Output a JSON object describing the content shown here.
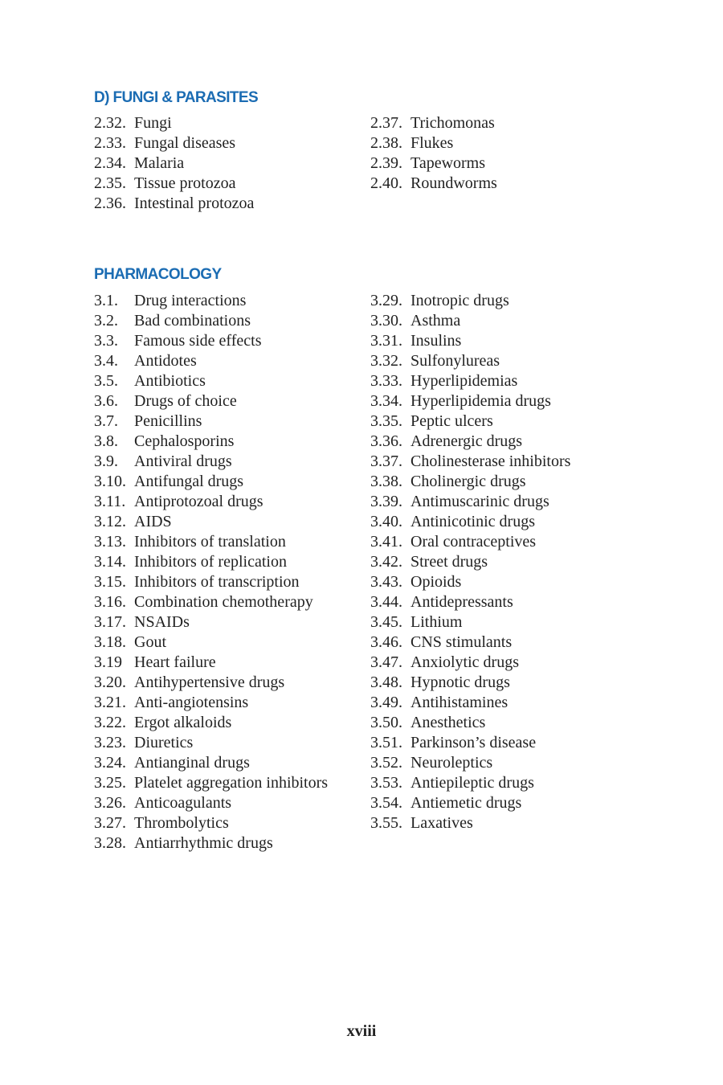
{
  "sections": [
    {
      "title": "D) FUNGI & PARASITES",
      "left": [
        [
          "2.32.",
          "Fungi"
        ],
        [
          "2.33.",
          "Fungal diseases"
        ],
        [
          "2.34.",
          "Malaria"
        ],
        [
          "2.35.",
          "Tissue protozoa"
        ],
        [
          "2.36.",
          "Intestinal protozoa"
        ]
      ],
      "right": [
        [
          "2.37.",
          "Trichomonas"
        ],
        [
          "2.38.",
          "Flukes"
        ],
        [
          "2.39.",
          "Tapeworms"
        ],
        [
          "2.40.",
          "Roundworms"
        ]
      ]
    },
    {
      "title": "PHARMACOLOGY",
      "left": [
        [
          "3.1.",
          "Drug interactions"
        ],
        [
          "3.2.",
          "Bad combinations"
        ],
        [
          "3.3.",
          "Famous side effects"
        ],
        [
          "3.4.",
          "Antidotes"
        ],
        [
          "3.5.",
          "Antibiotics"
        ],
        [
          "3.6.",
          "Drugs of choice"
        ],
        [
          "3.7.",
          "Penicillins"
        ],
        [
          "3.8.",
          "Cephalosporins"
        ],
        [
          "3.9.",
          "Antiviral drugs"
        ],
        [
          "3.10.",
          "Antifungal drugs"
        ],
        [
          "3.11.",
          "Antiprotozoal drugs"
        ],
        [
          "3.12.",
          "AIDS"
        ],
        [
          "3.13.",
          "Inhibitors of translation"
        ],
        [
          "3.14.",
          "Inhibitors of replication"
        ],
        [
          "3.15.",
          "Inhibitors of transcription"
        ],
        [
          "3.16.",
          "Combination chemotherapy"
        ],
        [
          "3.17.",
          "NSAIDs"
        ],
        [
          "3.18.",
          "Gout"
        ],
        [
          "3.19",
          "Heart failure"
        ],
        [
          "3.20.",
          "Antihypertensive drugs"
        ],
        [
          "3.21.",
          "Anti-angiotensins"
        ],
        [
          "3.22.",
          "Ergot alkaloids"
        ],
        [
          "3.23.",
          "Diuretics"
        ],
        [
          "3.24.",
          "Antianginal drugs"
        ],
        [
          "3.25.",
          "Platelet aggregation inhibitors"
        ],
        [
          "3.26.",
          "Anticoagulants"
        ],
        [
          "3.27.",
          "Thrombolytics"
        ],
        [
          "3.28.",
          "Antiarrhythmic drugs"
        ]
      ],
      "right": [
        [
          "3.29.",
          "Inotropic drugs"
        ],
        [
          "3.30.",
          "Asthma"
        ],
        [
          "3.31.",
          "Insulins"
        ],
        [
          "3.32.",
          "Sulfonylureas"
        ],
        [
          "3.33.",
          "Hyperlipidemias"
        ],
        [
          "3.34.",
          "Hyperlipidemia drugs"
        ],
        [
          "3.35.",
          "Peptic ulcers"
        ],
        [
          "3.36.",
          "Adrenergic drugs"
        ],
        [
          "3.37.",
          "Cholinesterase inhibitors"
        ],
        [
          "3.38.",
          "Cholinergic drugs"
        ],
        [
          "3.39.",
          "Antimuscarinic drugs"
        ],
        [
          "3.40.",
          "Antinicotinic drugs"
        ],
        [
          "3.41.",
          "Oral contraceptives"
        ],
        [
          "3.42.",
          "Street drugs"
        ],
        [
          "3.43.",
          "Opioids"
        ],
        [
          "3.44.",
          "Antidepressants"
        ],
        [
          "3.45.",
          "Lithium"
        ],
        [
          "3.46.",
          "CNS stimulants"
        ],
        [
          "3.47.",
          "Anxiolytic drugs"
        ],
        [
          "3.48.",
          "Hypnotic drugs"
        ],
        [
          "3.49.",
          "Antihistamines"
        ],
        [
          "3.50.",
          "Anesthetics"
        ],
        [
          "3.51.",
          "Parkinson’s disease"
        ],
        [
          "3.52.",
          "Neuroleptics"
        ],
        [
          "3.53.",
          "Antiepileptic drugs"
        ],
        [
          "3.54.",
          "Antiemetic drugs"
        ],
        [
          "3.55.",
          "Laxatives"
        ]
      ]
    }
  ],
  "page_number": "xviii",
  "colors": {
    "heading": "#1b6cb3",
    "text": "#222222"
  }
}
